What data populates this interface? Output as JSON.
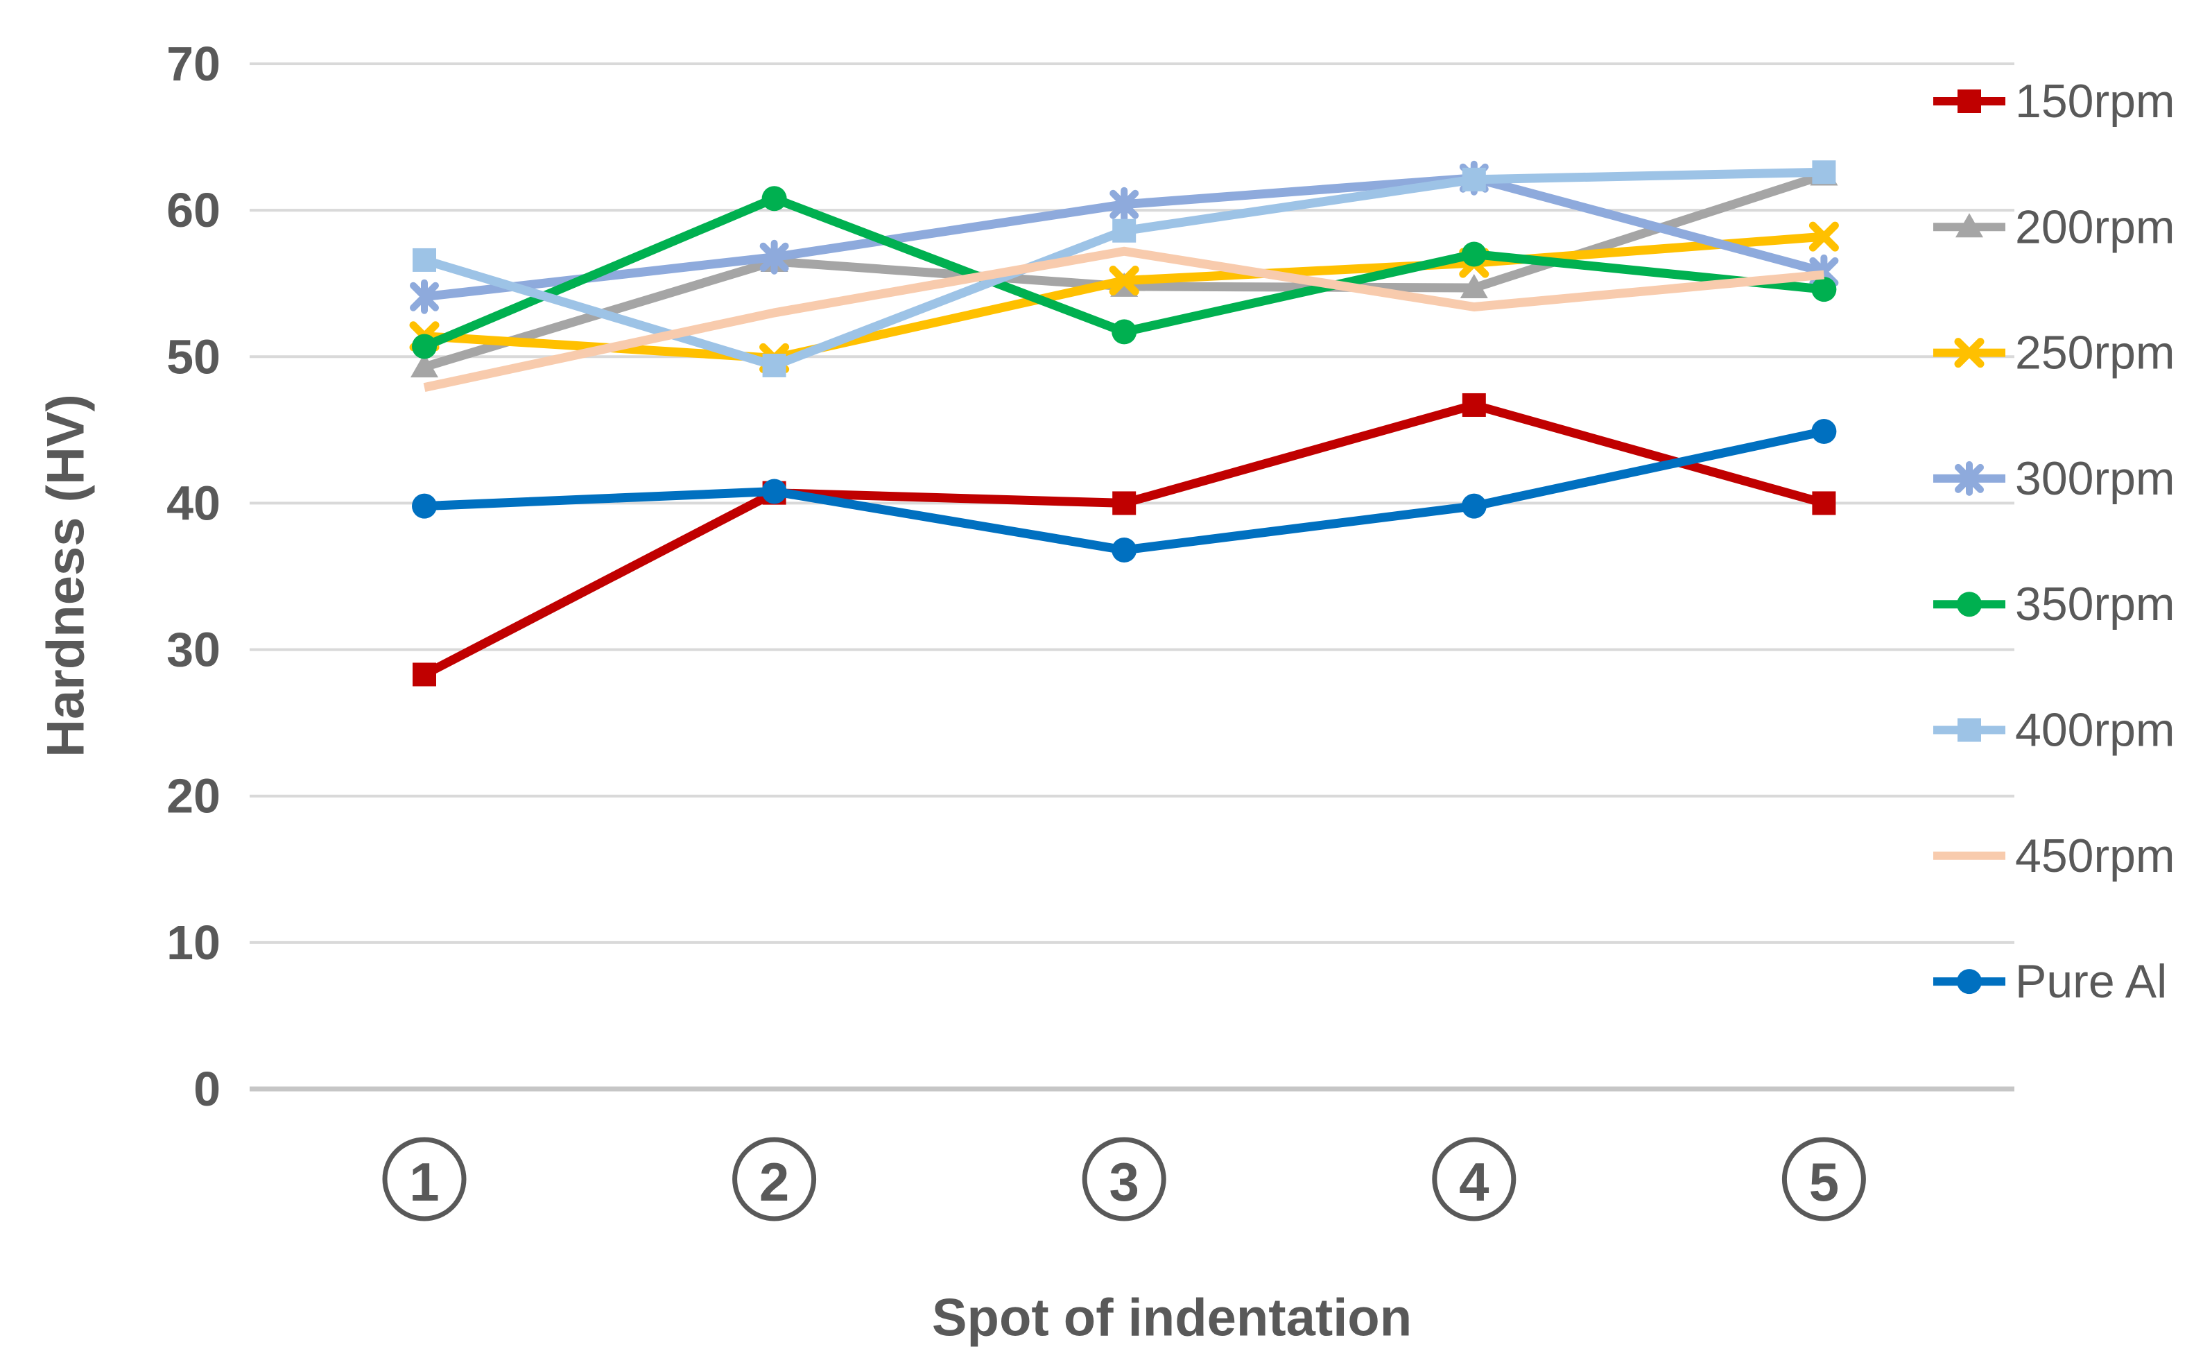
{
  "page": {
    "background": "#FFFFFF",
    "text_color": "#595959",
    "grid_color": "#D9D9D9",
    "axis_line_color": "#C6C6C6"
  },
  "chart_data": {
    "type": "line",
    "title": "",
    "xlabel": "Spot of indentation",
    "ylabel": "Hardness (HV)",
    "categories": [
      "1",
      "2",
      "3",
      "4",
      "5"
    ],
    "category_style": "circled-number",
    "x_values": [
      1,
      2,
      3,
      4,
      5
    ],
    "ylim": [
      0,
      70
    ],
    "yticks": [
      0,
      10,
      20,
      30,
      40,
      50,
      60,
      70
    ],
    "grid": "horizontal",
    "legend_position": "right",
    "series": [
      {
        "name": "150rpm",
        "color": "#C00000",
        "marker": "square",
        "values": [
          28.3,
          40.7,
          40.0,
          46.7,
          40.0
        ]
      },
      {
        "name": "200rpm",
        "color": "#A5A5A5",
        "marker": "triangle",
        "values": [
          49.3,
          56.5,
          54.8,
          54.7,
          62.4
        ]
      },
      {
        "name": "250rpm",
        "color": "#FFC000",
        "marker": "x",
        "values": [
          51.4,
          49.9,
          55.2,
          56.4,
          58.2
        ]
      },
      {
        "name": "300rpm",
        "color": "#8EAADC",
        "marker": "asterisk",
        "values": [
          54.1,
          56.8,
          60.4,
          62.2,
          55.8
        ]
      },
      {
        "name": "350rpm",
        "color": "#00B050",
        "marker": "circle",
        "values": [
          50.7,
          60.8,
          51.7,
          57.0,
          54.6
        ]
      },
      {
        "name": "400rpm",
        "color": "#9DC3E6",
        "marker": "square",
        "values": [
          56.6,
          49.4,
          58.6,
          62.1,
          62.6
        ]
      },
      {
        "name": "450rpm",
        "color": "#F8CBAD",
        "marker": "none",
        "values": [
          47.9,
          53.0,
          57.2,
          53.4,
          55.6
        ]
      },
      {
        "name": "Pure Al",
        "color": "#0070C0",
        "marker": "circle",
        "values": [
          39.8,
          40.8,
          36.8,
          39.8,
          44.9
        ]
      }
    ]
  }
}
